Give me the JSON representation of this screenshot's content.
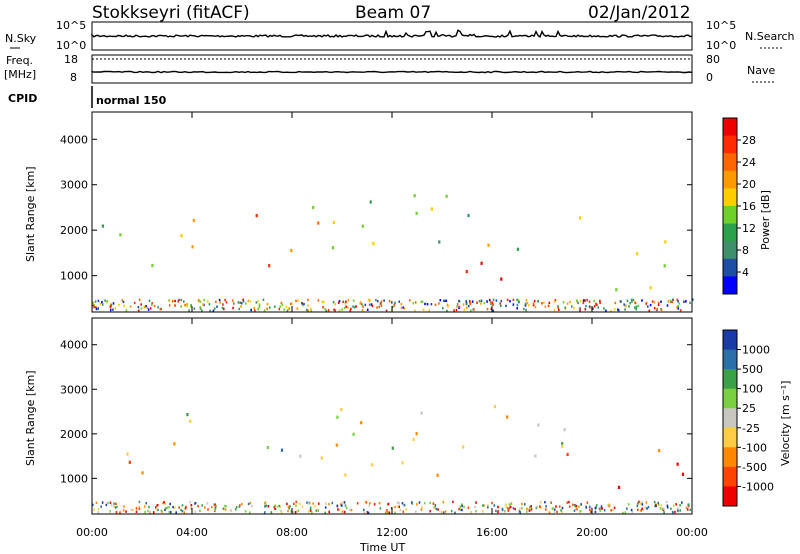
{
  "header": {
    "station": "Stokkseyri (fitACF)",
    "beam": "Beam 07",
    "date": "02/Jan/2012"
  },
  "noise_panel": {
    "left_label": "N.Sky",
    "right_label": "N.Search",
    "left_ticks": [
      "10^5",
      "10^0"
    ],
    "right_ticks": [
      "10^5",
      "10^0"
    ]
  },
  "freq_panel": {
    "left_label_top": "Freq.",
    "left_label_bottom": "[MHz]",
    "right_label": "Nave",
    "left_ticks": [
      "18",
      "8"
    ],
    "right_ticks": [
      "80",
      "0"
    ]
  },
  "cpid_panel": {
    "label": "CPID",
    "value": "normal 150"
  },
  "colors": {
    "power_scale": [
      "#0000ff",
      "#1f4ea6",
      "#3f8f6a",
      "#2aa14a",
      "#6fd02a",
      "#ffcc00",
      "#ff9900",
      "#ff6600",
      "#ff2a00",
      "#ee0000"
    ],
    "velocity_scale": [
      "#ee0000",
      "#ff4400",
      "#ff8800",
      "#ffcc44",
      "#c8c8c0",
      "#7ad040",
      "#3aa04a",
      "#2a6fa8",
      "#1a3aa8"
    ]
  },
  "chart_data": [
    {
      "type": "heatmap",
      "name": "power",
      "ylabel": "Slant Range [km]",
      "colorbar_label": "Power [dB]",
      "colorbar_ticks": [
        "28",
        "24",
        "20",
        "16",
        "12",
        "8",
        "4"
      ],
      "yticks": [
        "4000",
        "3000",
        "2000",
        "1000"
      ],
      "ylim": [
        200,
        4600
      ],
      "xlim_hours": [
        0,
        24
      ],
      "clusters": [
        {
          "t0": 0.3,
          "t1": 3.6,
          "r0": 1200,
          "r1": 2300,
          "level": 5
        },
        {
          "t0": 3.6,
          "t1": 5.0,
          "r0": 1500,
          "r1": 2700,
          "level": 5
        },
        {
          "t0": 6.5,
          "t1": 9.5,
          "r0": 1200,
          "r1": 2600,
          "level": 6
        },
        {
          "t0": 9.5,
          "t1": 19.5,
          "r0": 1500,
          "r1": 2800,
          "level": 4
        },
        {
          "t0": 10.5,
          "t1": 17.5,
          "r0": 950,
          "r1": 1350,
          "level": 9
        },
        {
          "t0": 20.5,
          "t1": 24.0,
          "r0": 600,
          "r1": 2000,
          "level": 6
        }
      ]
    },
    {
      "type": "heatmap",
      "name": "velocity",
      "ylabel": "Slant Range [km]",
      "colorbar_label": "Velocity [m s⁻¹]",
      "colorbar_ticks": [
        "1000",
        "500",
        "100",
        "25",
        "-25",
        "-100",
        "-500",
        "-1000"
      ],
      "yticks": [
        "4000",
        "3000",
        "2000",
        "1000"
      ],
      "ylim": [
        200,
        4600
      ],
      "xlim_hours": [
        0,
        24
      ],
      "xticks": [
        "00:00",
        "04:00",
        "08:00",
        "12:00",
        "16:00",
        "20:00",
        "00:00"
      ],
      "xlabel": "Time UT",
      "clusters": [
        {
          "t0": 0.3,
          "t1": 3.6,
          "r0": 1000,
          "r1": 2100,
          "level": 1
        },
        {
          "t0": 3.6,
          "t1": 5.0,
          "r0": 1400,
          "r1": 2600,
          "level": 5
        },
        {
          "t0": 6.5,
          "t1": 9.0,
          "r0": 1100,
          "r1": 2000,
          "level": 6
        },
        {
          "t0": 9.0,
          "t1": 19.0,
          "r0": 800,
          "r1": 2800,
          "level": 4
        },
        {
          "t0": 18.5,
          "t1": 19.5,
          "r0": 800,
          "r1": 1800,
          "level": 2
        },
        {
          "t0": 20.5,
          "t1": 24.0,
          "r0": 700,
          "r1": 1700,
          "level": 1
        }
      ]
    }
  ]
}
